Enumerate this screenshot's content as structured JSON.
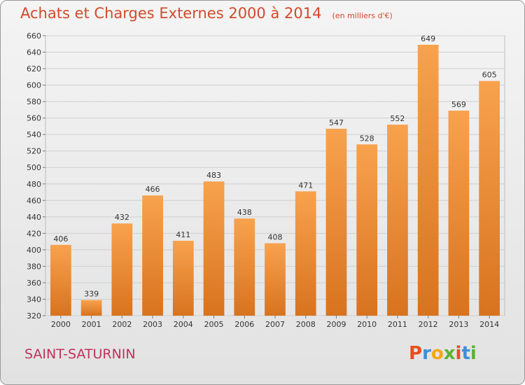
{
  "chart_data": {
    "type": "bar",
    "title": "Achats et Charges Externes 2000 à 2014",
    "subtitle": "(en milliers d'€)",
    "categories": [
      "2000",
      "2001",
      "2002",
      "2003",
      "2004",
      "2005",
      "2006",
      "2007",
      "2008",
      "2009",
      "2010",
      "2011",
      "2012",
      "2013",
      "2014"
    ],
    "values": [
      406,
      339,
      432,
      466,
      411,
      483,
      438,
      408,
      471,
      547,
      528,
      552,
      649,
      569,
      605
    ],
    "ylim": [
      320,
      660
    ],
    "yticks": [
      "320",
      "340",
      "360",
      "380",
      "400",
      "420",
      "440",
      "460",
      "480",
      "500",
      "520",
      "540",
      "560",
      "580",
      "600",
      "620",
      "640",
      "660"
    ],
    "grid": true,
    "bar_color": "#f0923a"
  },
  "footer": {
    "city": "SAINT-SATURNIN",
    "logo_letters": [
      "P",
      "r",
      "o",
      "x",
      "i",
      "t",
      "i"
    ],
    "logo_colors": [
      "#e94e1b",
      "#3d8fd8",
      "#f7a70e",
      "#5bb431",
      "#e94e1b",
      "#3d8fd8",
      "#5bb431"
    ]
  }
}
